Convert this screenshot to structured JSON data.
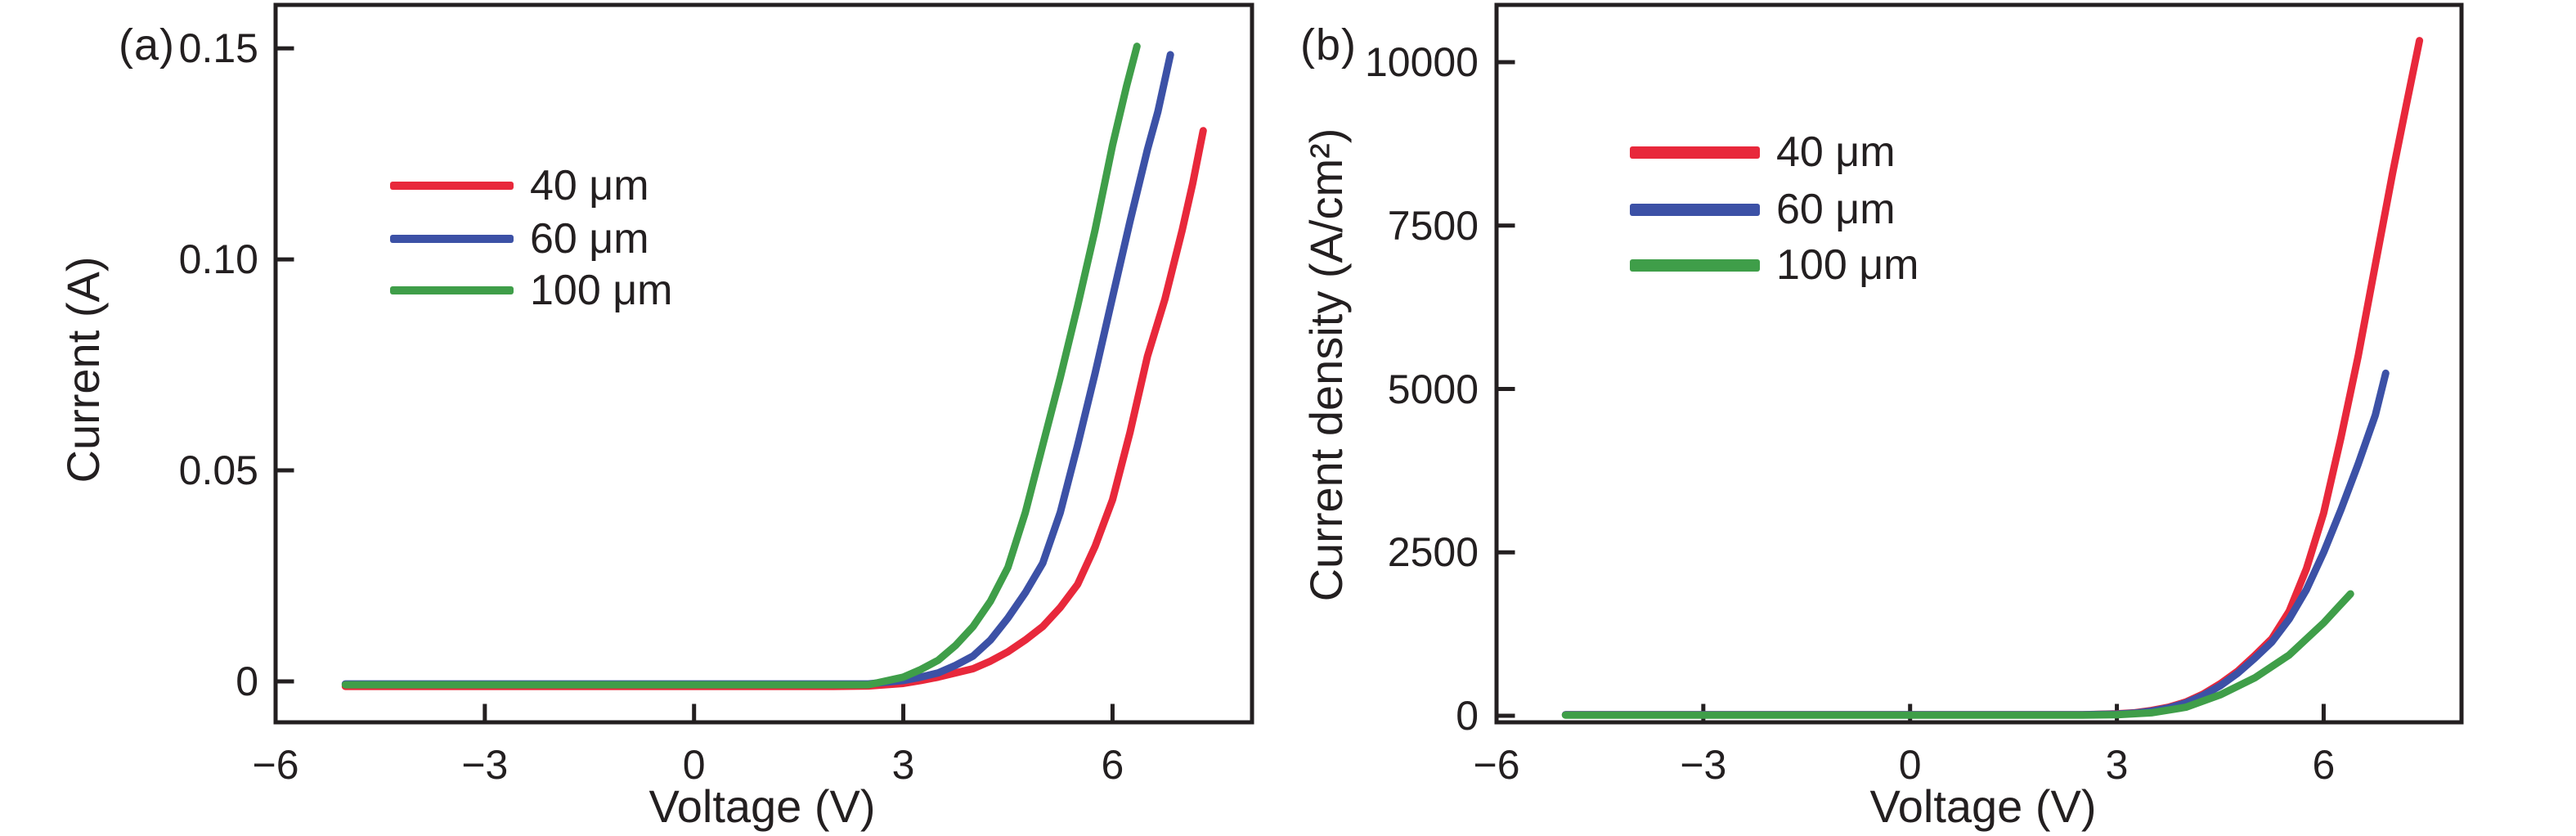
{
  "figure_background": "#ffffff",
  "text_color": "#231f20",
  "axis_color": "#231f20",
  "chart_data": [
    {
      "type": "line",
      "panel": "(a)",
      "title": "",
      "xlabel": "Voltage (V)",
      "ylabel": "Current (A)",
      "xlim": [
        -6,
        8
      ],
      "ylim": [
        -0.0097,
        0.1603
      ],
      "grid": false,
      "legend_position": "upper-left-inside",
      "x_tick_values": [
        -6,
        -3,
        0,
        3,
        6
      ],
      "x_tick_labels": [
        "−6",
        "−3",
        "0",
        "3",
        "6"
      ],
      "y_tick_values": [
        0,
        0.05,
        0.1,
        0.15
      ],
      "y_tick_labels": [
        "0",
        "0.05",
        "0.10",
        "0.15"
      ],
      "series": [
        {
          "name": "40 μm",
          "color": "#e8283b",
          "x": [
            -5,
            -4.5,
            -4,
            -3.5,
            -3,
            -2.5,
            -2,
            -1.5,
            -1,
            -0.5,
            0,
            0.5,
            1,
            1.5,
            2,
            2.5,
            3,
            3.25,
            3.5,
            3.75,
            4,
            4.25,
            4.5,
            4.75,
            5,
            5.25,
            5.5,
            5.75,
            6,
            6.25,
            6.5,
            6.75,
            7,
            7.15,
            7.3
          ],
          "y": [
            -0.0012,
            -0.0012,
            -0.0012,
            -0.0012,
            -0.0012,
            -0.0012,
            -0.0012,
            -0.0012,
            -0.0012,
            -0.0012,
            -0.0012,
            -0.0012,
            -0.0012,
            -0.0012,
            -0.0012,
            -0.0011,
            -0.0005,
            0.0002,
            0.001,
            0.002,
            0.003,
            0.0048,
            0.007,
            0.0098,
            0.013,
            0.0175,
            0.023,
            0.032,
            0.043,
            0.059,
            0.077,
            0.0905,
            0.107,
            0.118,
            0.1305
          ]
        },
        {
          "name": "60 μm",
          "color": "#3c51a6",
          "x": [
            -5,
            -4.5,
            -4,
            -3.5,
            -3,
            -2.5,
            -2,
            -1.5,
            -1,
            -0.5,
            0,
            0.5,
            1,
            1.5,
            2,
            2.5,
            3,
            3.25,
            3.5,
            3.75,
            4,
            4.25,
            4.5,
            4.75,
            5,
            5.25,
            5.5,
            5.75,
            6,
            6.25,
            6.5,
            6.65,
            6.83
          ],
          "y": [
            -0.0006,
            -0.0006,
            -0.0006,
            -0.0006,
            -0.0006,
            -0.0006,
            -0.0006,
            -0.0006,
            -0.0006,
            -0.0006,
            -0.0006,
            -0.0006,
            -0.0006,
            -0.0006,
            -0.0006,
            -0.0006,
            0.0002,
            0.001,
            0.002,
            0.0038,
            0.006,
            0.0098,
            0.015,
            0.021,
            0.028,
            0.04,
            0.056,
            0.073,
            0.091,
            0.109,
            0.126,
            0.135,
            0.1485
          ]
        },
        {
          "name": "100 μm",
          "color": "#3f9e49",
          "x": [
            -5,
            -4.5,
            -4,
            -3.5,
            -3,
            -2.5,
            -2,
            -1.5,
            -1,
            -0.5,
            0,
            0.5,
            1,
            1.5,
            2,
            2.5,
            3,
            3.25,
            3.5,
            3.75,
            4,
            4.25,
            4.5,
            4.75,
            5,
            5.25,
            5.5,
            5.75,
            6,
            6.2,
            6.35
          ],
          "y": [
            -0.0008,
            -0.0008,
            -0.0008,
            -0.0008,
            -0.0008,
            -0.0008,
            -0.0008,
            -0.0008,
            -0.0008,
            -0.0008,
            -0.0008,
            -0.0008,
            -0.0008,
            -0.0008,
            -0.0008,
            -0.0008,
            0.001,
            0.0028,
            0.005,
            0.0085,
            0.013,
            0.019,
            0.027,
            0.04,
            0.056,
            0.072,
            0.089,
            0.107,
            0.127,
            0.141,
            0.1505
          ]
        }
      ]
    },
    {
      "type": "line",
      "panel": "(b)",
      "title": "",
      "xlabel": "Voltage (V)",
      "ylabel": "Current density (A/cm²)",
      "xlim": [
        -6,
        8
      ],
      "ylim": [
        -100,
        10876
      ],
      "grid": false,
      "legend_position": "upper-left-inside",
      "x_tick_values": [
        -6,
        -3,
        0,
        3,
        6
      ],
      "x_tick_labels": [
        "−6",
        "−3",
        "0",
        "3",
        "6"
      ],
      "y_tick_values": [
        0,
        2500,
        5000,
        7500,
        10000
      ],
      "y_tick_labels": [
        "0",
        "2500",
        "5000",
        "7500",
        "10000"
      ],
      "series": [
        {
          "name": "40 μm",
          "color": "#e8283b",
          "x": [
            -5,
            -4.5,
            -4,
            -3.5,
            -3,
            -2.5,
            -2,
            -1.5,
            -1,
            -0.5,
            0,
            0.5,
            1,
            1.5,
            2,
            2.5,
            3,
            3.25,
            3.5,
            3.75,
            4,
            4.25,
            4.5,
            4.75,
            5,
            5.25,
            5.5,
            5.75,
            6,
            6.25,
            6.5,
            6.75,
            7,
            7.2,
            7.39
          ],
          "y": [
            15,
            15,
            15,
            15,
            15,
            15,
            15,
            15,
            15,
            15,
            15,
            15,
            15,
            15,
            15,
            15,
            30,
            45,
            80,
            130,
            210,
            330,
            490,
            680,
            920,
            1180,
            1600,
            2250,
            3100,
            4250,
            5500,
            6900,
            8300,
            9350,
            10330
          ]
        },
        {
          "name": "60 μm",
          "color": "#3c51a6",
          "x": [
            -5,
            -4.5,
            -4,
            -3.5,
            -3,
            -2.5,
            -2,
            -1.5,
            -1,
            -0.5,
            0,
            0.5,
            1,
            1.5,
            2,
            2.5,
            3,
            3.25,
            3.5,
            3.75,
            4,
            4.25,
            4.5,
            4.75,
            5,
            5.25,
            5.5,
            5.75,
            6,
            6.25,
            6.5,
            6.75,
            6.9
          ],
          "y": [
            15,
            15,
            15,
            15,
            15,
            15,
            15,
            15,
            15,
            15,
            15,
            15,
            15,
            15,
            15,
            15,
            25,
            40,
            70,
            120,
            195,
            310,
            460,
            650,
            880,
            1130,
            1480,
            1930,
            2500,
            3150,
            3850,
            4600,
            5240
          ]
        },
        {
          "name": "100 μm",
          "color": "#3f9e49",
          "x": [
            -5,
            -4.5,
            -4,
            -3.5,
            -3,
            -2.5,
            -2,
            -1.5,
            -1,
            -0.5,
            0,
            0.5,
            1,
            1.5,
            2,
            2.5,
            3,
            3.5,
            4,
            4.5,
            5,
            5.5,
            6,
            6.2,
            6.39
          ],
          "y": [
            10,
            10,
            10,
            10,
            10,
            10,
            10,
            10,
            10,
            10,
            10,
            10,
            10,
            10,
            10,
            10,
            15,
            45,
            130,
            320,
            580,
            930,
            1420,
            1650,
            1865
          ]
        }
      ]
    }
  ]
}
